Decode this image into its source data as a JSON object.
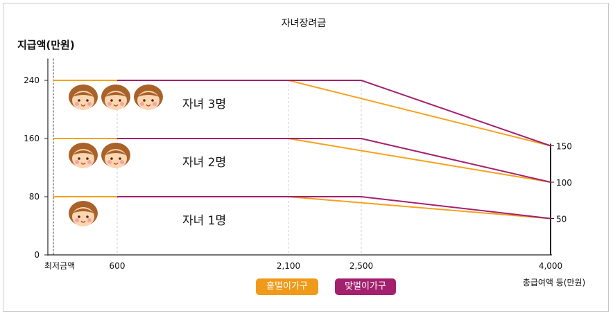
{
  "chart_data": {
    "type": "line",
    "title": "자녀장려금",
    "ylabel": "지급액(만원)",
    "xlabel": "총급여액 등(만원)",
    "ylim": [
      0,
      270
    ],
    "y_ticks": [
      "0",
      "80",
      "160",
      "240"
    ],
    "right_ticks": [
      "150",
      "100",
      "50"
    ],
    "x_tick_labels": [
      "최저금액",
      "600",
      "2,100",
      "2,500",
      "4,000"
    ],
    "groups": [
      {
        "label": "자녀 3명",
        "children": 3
      },
      {
        "label": "자녀 2명",
        "children": 2
      },
      {
        "label": "자녀 1명",
        "children": 1
      }
    ],
    "series": [
      {
        "name": "홑벌이가구",
        "color": "#f5a11c",
        "lines": [
          {
            "group": "자녀 3명",
            "points": [
              [
                0,
                240
              ],
              [
                2100,
                240
              ],
              [
                4000,
                150
              ]
            ]
          },
          {
            "group": "자녀 2명",
            "points": [
              [
                0,
                160
              ],
              [
                2100,
                160
              ],
              [
                4000,
                100
              ]
            ]
          },
          {
            "group": "자녀 1명",
            "points": [
              [
                0,
                80
              ],
              [
                2100,
                80
              ],
              [
                4000,
                50
              ]
            ]
          }
        ]
      },
      {
        "name": "맞벌이가구",
        "color": "#a3206f",
        "lines": [
          {
            "group": "자녀 3명",
            "points": [
              [
                600,
                240
              ],
              [
                2500,
                240
              ],
              [
                4000,
                150
              ]
            ]
          },
          {
            "group": "자녀 2명",
            "points": [
              [
                600,
                160
              ],
              [
                2500,
                160
              ],
              [
                4000,
                100
              ]
            ]
          },
          {
            "group": "자녀 1명",
            "points": [
              [
                600,
                80
              ],
              [
                2500,
                80
              ],
              [
                4000,
                50
              ]
            ]
          }
        ]
      }
    ],
    "legend": [
      "홑벌이가구",
      "맞벌이가구"
    ],
    "legend_position": "bottom",
    "grid": false
  }
}
